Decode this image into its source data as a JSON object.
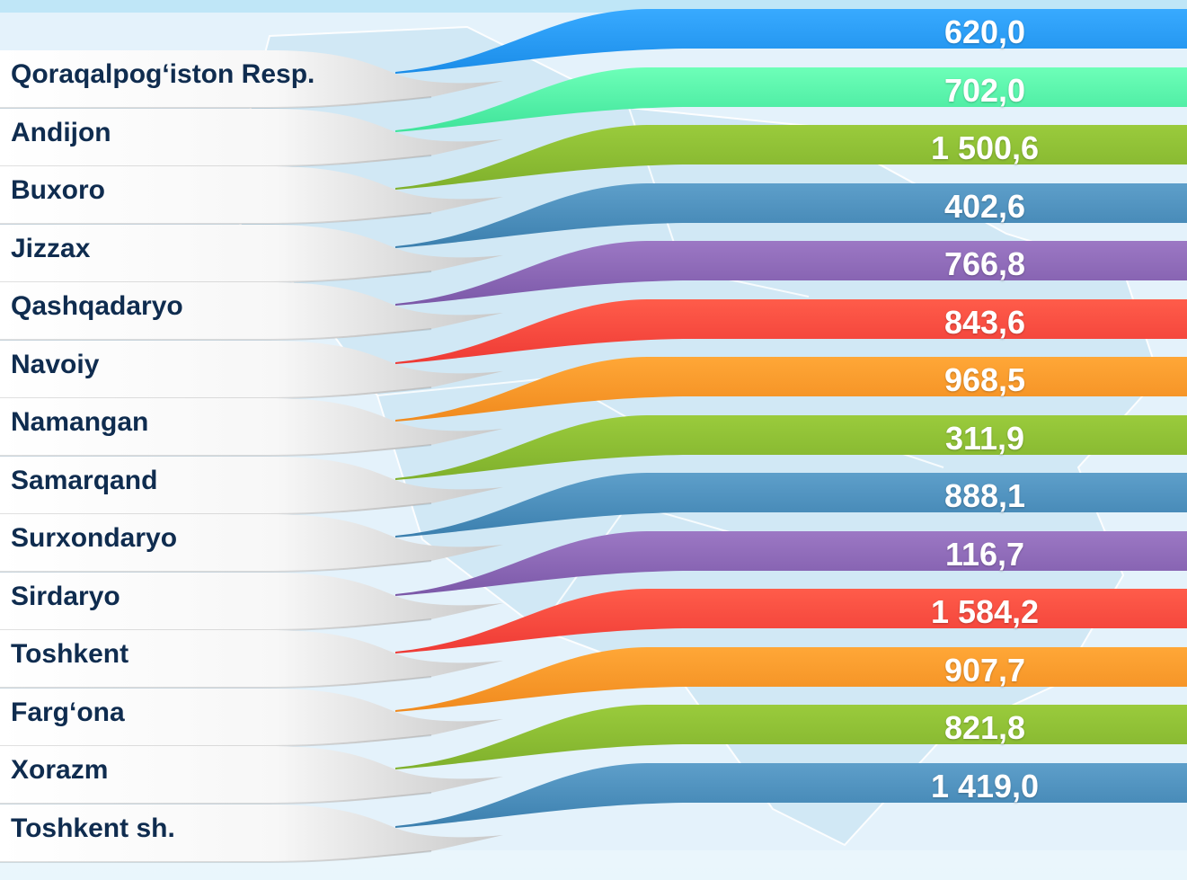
{
  "rows": [
    {
      "label": "Qoraqalpog‘iston Resp.",
      "value": "620,0",
      "color": "#1a8ce8",
      "light": "#38aaff"
    },
    {
      "label": "Andijon",
      "value": "702,0",
      "color": "#3fe39a",
      "light": "#6dffb8"
    },
    {
      "label": "Buxoro",
      "value": "1 500,6",
      "color": "#7fb02c",
      "light": "#9acb3c"
    },
    {
      "label": "Jizzax",
      "value": "402,6",
      "color": "#3b7fae",
      "light": "#5e9fca"
    },
    {
      "label": "Qashqadaryo",
      "value": "766,8",
      "color": "#7b58a8",
      "light": "#9c78c4"
    },
    {
      "label": "Navoiy",
      "value": "843,6",
      "color": "#ee3a35",
      "light": "#ff5c4a"
    },
    {
      "label": "Namangan",
      "value": "968,5",
      "color": "#f08a1e",
      "light": "#ffa737"
    },
    {
      "label": "Samarqand",
      "value": "311,9",
      "color": "#7fb02c",
      "light": "#9acb3c"
    },
    {
      "label": "Surxondaryo",
      "value": "888,1",
      "color": "#3b7fae",
      "light": "#5e9fca"
    },
    {
      "label": "Sirdaryo",
      "value": "116,7",
      "color": "#7b58a8",
      "light": "#9c78c4"
    },
    {
      "label": "Toshkent",
      "value": "1 584,2",
      "color": "#ee3a35",
      "light": "#ff5c4a"
    },
    {
      "label": "Farg‘ona",
      "value": "907,7",
      "color": "#f08a1e",
      "light": "#ffa737"
    },
    {
      "label": "Xorazm",
      "value": "821,8",
      "color": "#7fb02c",
      "light": "#9acb3c"
    },
    {
      "label": "Toshkent sh.",
      "value": "1 419,0",
      "color": "#3b7fae",
      "light": "#5e9fca"
    }
  ]
}
